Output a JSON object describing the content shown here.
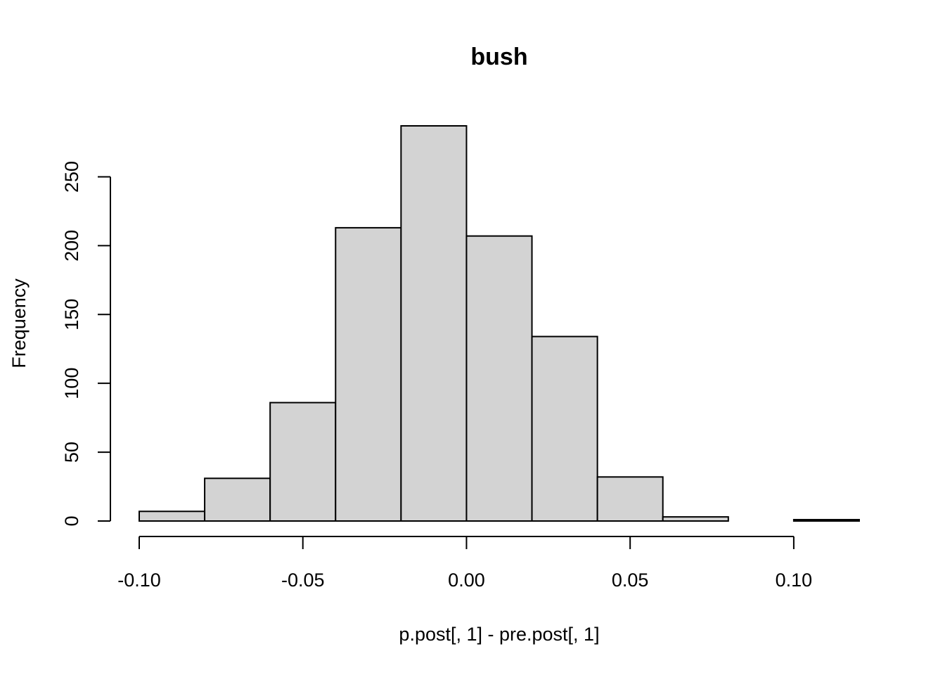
{
  "chart_data": {
    "type": "bar",
    "subtype": "histogram",
    "title": "bush",
    "xlabel": "p.post[, 1] - pre.post[, 1]",
    "ylabel": "Frequency",
    "bin_edges": [
      -0.1,
      -0.08,
      -0.06,
      -0.04,
      -0.02,
      0.0,
      0.02,
      0.04,
      0.06,
      0.08,
      0.1,
      0.12
    ],
    "values": [
      7,
      31,
      86,
      213,
      287,
      207,
      134,
      32,
      3,
      0,
      1
    ],
    "xlim": [
      -0.1,
      0.12
    ],
    "ylim": [
      0,
      287
    ],
    "x_ticks": [
      -0.1,
      -0.05,
      0.0,
      0.05,
      0.1
    ],
    "x_tick_labels": [
      "-0.10",
      "-0.05",
      "0.00",
      "0.05",
      "0.10"
    ],
    "y_ticks": [
      0,
      50,
      100,
      150,
      200,
      250
    ],
    "y_tick_labels": [
      "0",
      "50",
      "100",
      "150",
      "200",
      "250"
    ],
    "bar_color": "#d3d3d3",
    "border_color": "#000000",
    "grid": false
  }
}
